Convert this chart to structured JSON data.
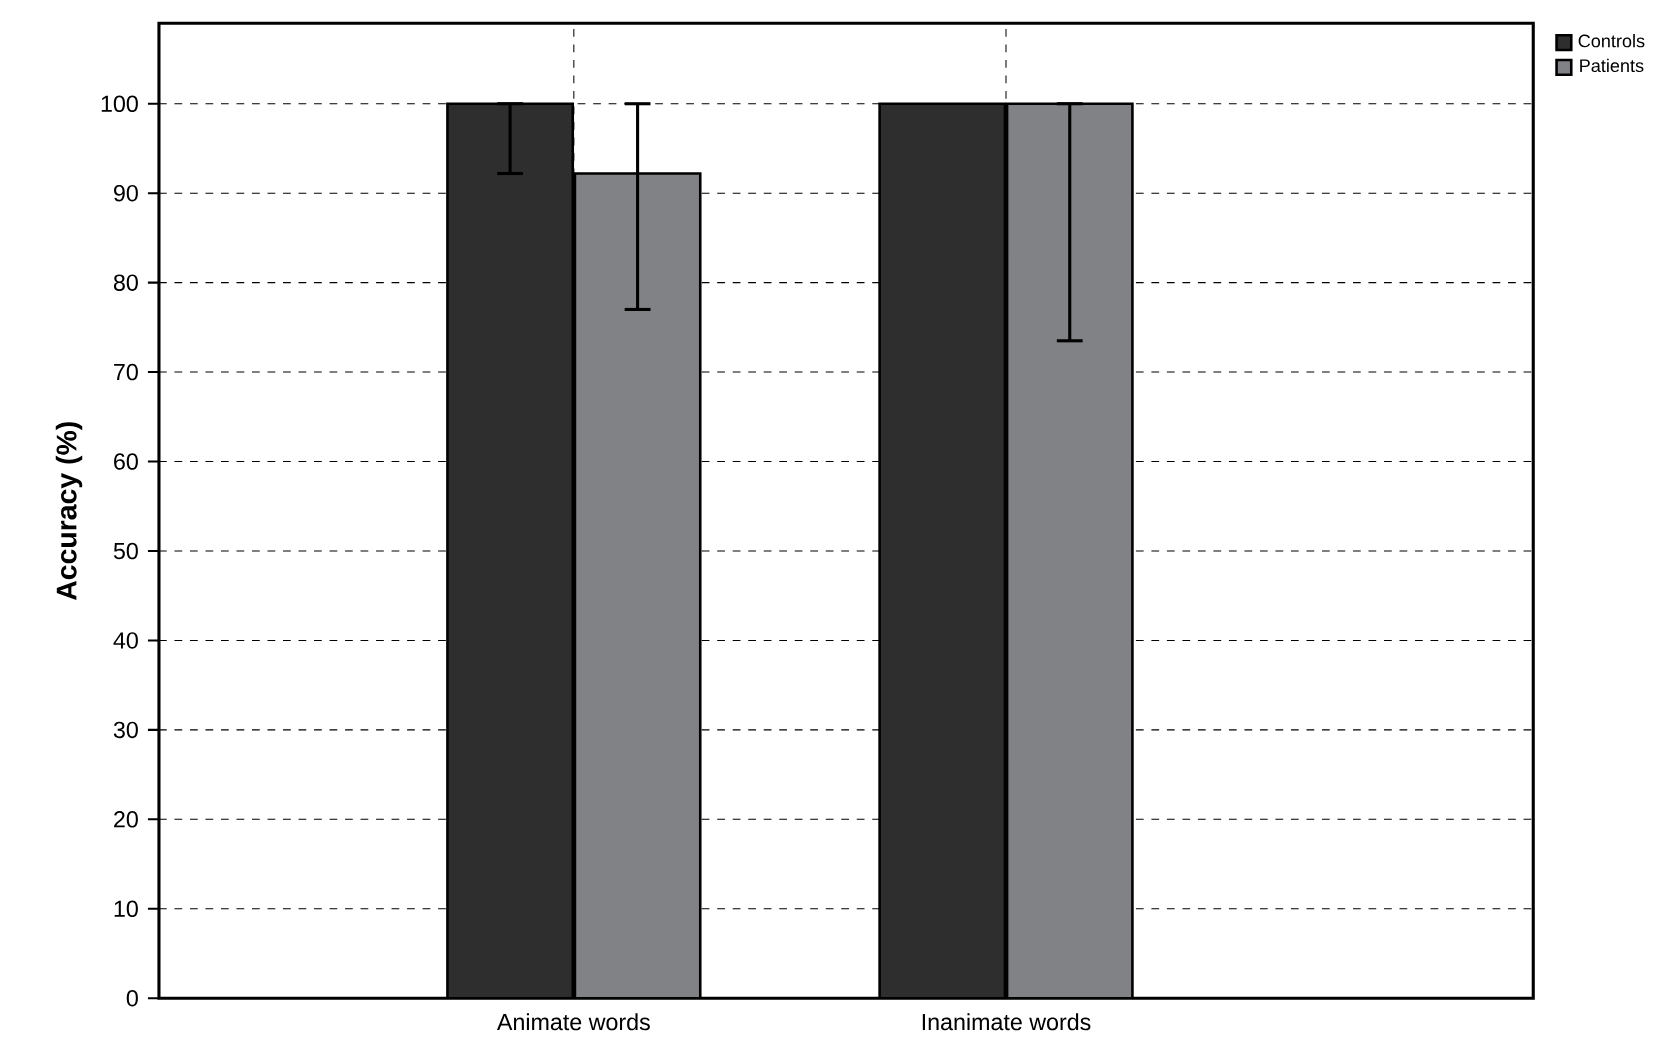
{
  "chart_data": {
    "type": "bar",
    "ylabel": "Accuracy (%)",
    "categories": [
      "Animate words",
      "Inanimate words"
    ],
    "series": [
      {
        "name": "Controls",
        "color": "#2e2e2e",
        "values": [
          100,
          100
        ],
        "errors": [
          [
            92.2,
            100
          ],
          null
        ]
      },
      {
        "name": "Patients",
        "color": "#808285",
        "values": [
          92.2,
          100
        ],
        "errors": [
          [
            77,
            100
          ],
          [
            73.5,
            100
          ]
        ]
      }
    ],
    "ylim": [
      0,
      109
    ],
    "yticks": [
      0,
      10,
      20,
      30,
      40,
      50,
      60,
      70,
      80,
      90,
      100
    ],
    "grid": true,
    "legend": "top right"
  }
}
